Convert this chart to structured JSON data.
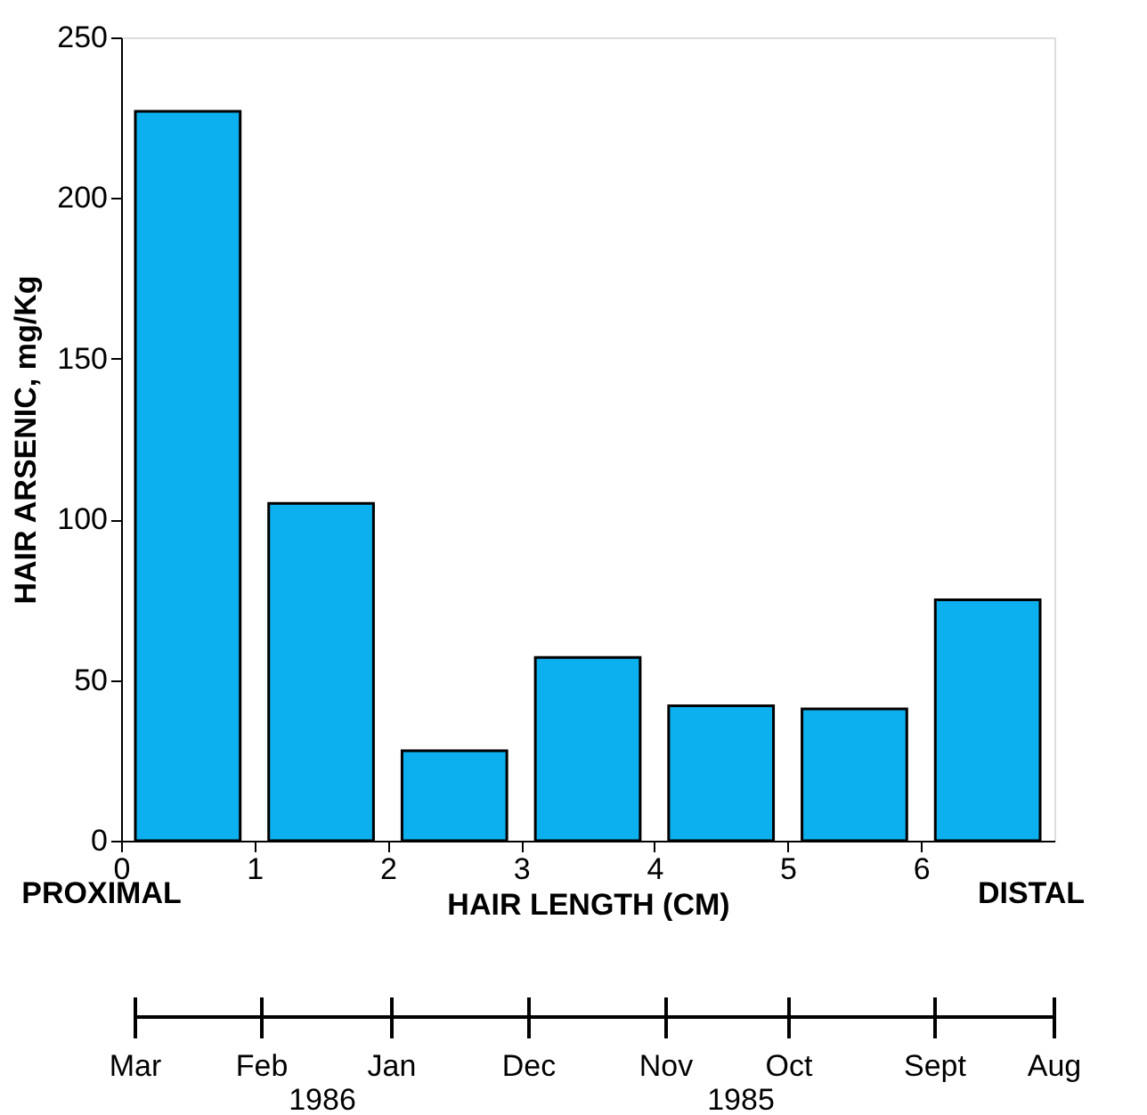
{
  "chart_data": {
    "type": "histogram",
    "bins": [
      0,
      1,
      2,
      3,
      4,
      5,
      6,
      7
    ],
    "values": [
      227,
      105,
      28,
      57,
      42,
      41,
      75
    ],
    "color": "#0db0ee",
    "xlabel": "HAIR LENGTH (CM)",
    "ylabel": "HAIR ARSENIC, mg/Kg",
    "xlim": [
      0,
      7
    ],
    "xticks": [
      0,
      1,
      2,
      3,
      4,
      5,
      6
    ],
    "ylim": [
      0,
      250
    ],
    "yticks": [
      0,
      50,
      100,
      150,
      200,
      250
    ],
    "annotations": [
      "PROXIMAL",
      "DISTAL",
      "Mar",
      "Feb",
      "Jan",
      "Dec",
      "Nov",
      "Oct",
      "Sept",
      "Aug",
      "1986",
      "1985"
    ],
    "grid": false
  }
}
